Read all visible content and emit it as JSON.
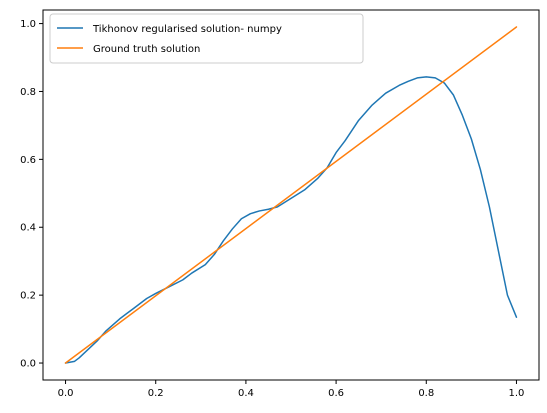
{
  "chart_data": {
    "type": "line",
    "title": "",
    "xlabel": "",
    "ylabel": "",
    "xlim": [
      -0.05,
      1.05
    ],
    "ylim": [
      -0.05,
      1.04
    ],
    "grid": false,
    "legend_position": "top-left",
    "x_ticks": [
      {
        "value": 0.0,
        "label": "0.0"
      },
      {
        "value": 0.2,
        "label": "0.2"
      },
      {
        "value": 0.4,
        "label": "0.4"
      },
      {
        "value": 0.6,
        "label": "0.6"
      },
      {
        "value": 0.8,
        "label": "0.8"
      },
      {
        "value": 1.0,
        "label": "1.0"
      }
    ],
    "y_ticks": [
      {
        "value": 0.0,
        "label": "0.0"
      },
      {
        "value": 0.2,
        "label": "0.2"
      },
      {
        "value": 0.4,
        "label": "0.4"
      },
      {
        "value": 0.6,
        "label": "0.6"
      },
      {
        "value": 0.8,
        "label": "0.8"
      },
      {
        "value": 1.0,
        "label": "1.0"
      }
    ],
    "series": [
      {
        "name": "Tikhonov regularised solution- numpy",
        "color": "#1f77b4",
        "x": [
          0.0,
          0.02,
          0.03,
          0.05,
          0.07,
          0.09,
          0.12,
          0.15,
          0.18,
          0.2,
          0.23,
          0.26,
          0.28,
          0.31,
          0.33,
          0.35,
          0.37,
          0.39,
          0.41,
          0.43,
          0.45,
          0.47,
          0.5,
          0.53,
          0.56,
          0.58,
          0.6,
          0.62,
          0.65,
          0.68,
          0.71,
          0.74,
          0.76,
          0.78,
          0.8,
          0.82,
          0.84,
          0.86,
          0.88,
          0.9,
          0.92,
          0.94,
          0.96,
          0.98,
          1.0
        ],
        "y": [
          0.0,
          0.005,
          0.015,
          0.04,
          0.065,
          0.095,
          0.13,
          0.16,
          0.19,
          0.205,
          0.225,
          0.245,
          0.265,
          0.29,
          0.32,
          0.36,
          0.395,
          0.425,
          0.44,
          0.448,
          0.453,
          0.46,
          0.485,
          0.51,
          0.545,
          0.575,
          0.62,
          0.655,
          0.715,
          0.76,
          0.795,
          0.818,
          0.83,
          0.84,
          0.843,
          0.84,
          0.825,
          0.79,
          0.73,
          0.66,
          0.57,
          0.46,
          0.33,
          0.2,
          0.135
        ]
      },
      {
        "name": "Ground truth solution",
        "color": "#ff7f0e",
        "x": [
          0.0,
          1.0
        ],
        "y": [
          0.0,
          0.99
        ]
      }
    ]
  }
}
